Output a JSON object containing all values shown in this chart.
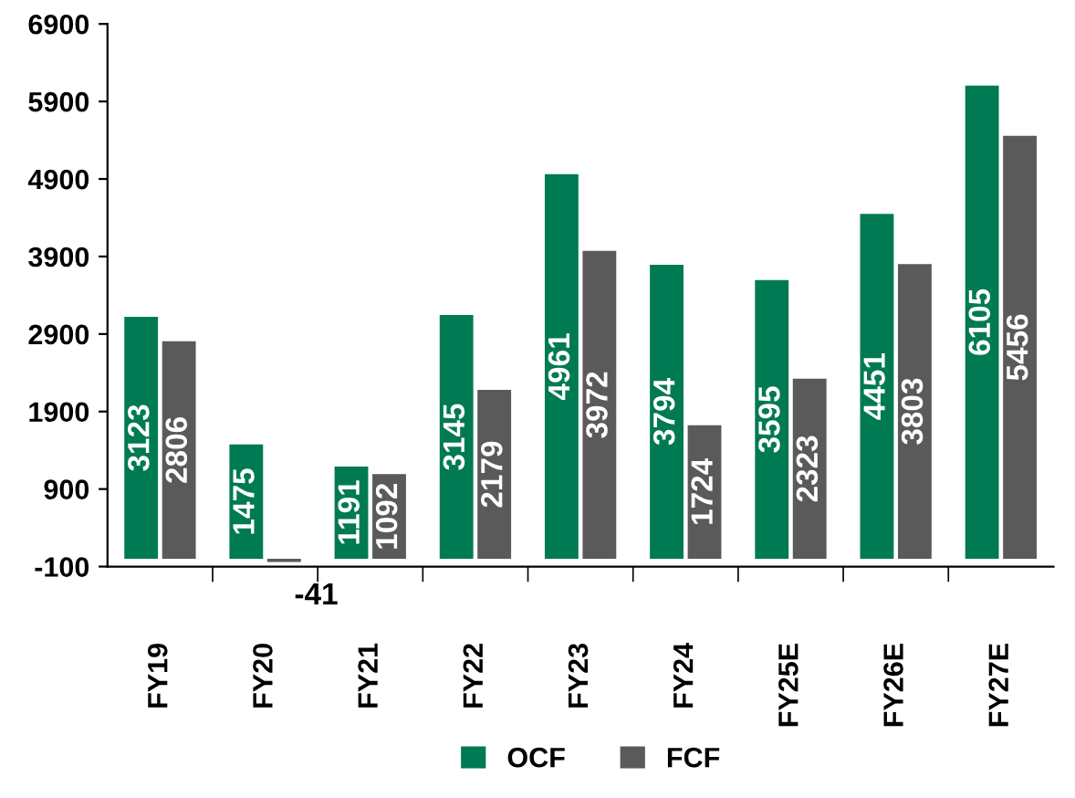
{
  "chart_data": {
    "type": "bar",
    "categories": [
      "FY19",
      "FY20",
      "FY21",
      "FY22",
      "FY23",
      "FY24",
      "FY25E",
      "FY26E",
      "FY27E"
    ],
    "series": [
      {
        "name": "OCF",
        "color": "#007a53",
        "values": [
          3123,
          1475,
          1191,
          3145,
          4961,
          3794,
          3595,
          4451,
          6105
        ]
      },
      {
        "name": "FCF",
        "color": "#5a5a5a",
        "values": [
          2806,
          -41,
          1092,
          2179,
          3972,
          1724,
          2323,
          3803,
          5456
        ]
      }
    ],
    "ylim": [
      -100,
      6900
    ],
    "yticks": [
      -100,
      900,
      1900,
      2900,
      3900,
      4900,
      5900,
      6900
    ],
    "data_labels": true,
    "grid": false,
    "legend": "bottom"
  }
}
